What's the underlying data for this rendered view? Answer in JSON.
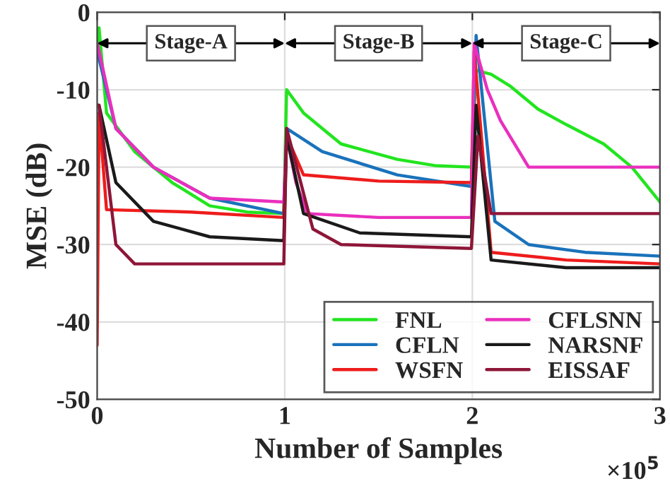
{
  "chart_data": {
    "type": "line",
    "xlabel": "Number of Samples",
    "ylabel": "MSE (dB)",
    "xlim": [
      0,
      3
    ],
    "xticks": [
      0,
      1,
      2,
      3
    ],
    "ylim": [
      -50,
      0
    ],
    "yticks": [
      -50,
      -40,
      -30,
      -20,
      -10,
      0
    ],
    "grid": true,
    "legend": "bottom right",
    "annotations": [
      "Stage-A",
      "Stage-B",
      "Stage-C",
      "×10$^{5}$"
    ],
    "series": [
      {
        "name": "FNL",
        "color": "#22e51f",
        "x": [
          0,
          0.01,
          0.05,
          0.2,
          0.4,
          0.6,
          0.8,
          0.995,
          1.01,
          1.1,
          1.3,
          1.6,
          1.8,
          1.995,
          2.02,
          2.1,
          2.2,
          2.35,
          2.5,
          2.7,
          2.85,
          3.0
        ],
        "values": [
          -5,
          -2,
          -13,
          -18,
          -22,
          -25,
          -25.8,
          -26,
          -10,
          -13,
          -17,
          -19,
          -19.8,
          -20,
          -7.5,
          -8,
          -9.5,
          -12.5,
          -14.5,
          -17,
          -20,
          -24.5
        ]
      },
      {
        "name": "CFLN",
        "color": "#1a72bb",
        "x": [
          0,
          0.01,
          0.1,
          0.3,
          0.6,
          0.995,
          1.01,
          1.2,
          1.6,
          1.995,
          2.02,
          2.07,
          2.12,
          2.3,
          2.6,
          3.0
        ],
        "values": [
          -5,
          -6,
          -15,
          -20,
          -24,
          -26,
          -15,
          -18,
          -21,
          -22.5,
          -3,
          -15,
          -27,
          -30,
          -31,
          -31.5
        ]
      },
      {
        "name": "WSFN",
        "color": "#ee1c1c",
        "x": [
          0,
          0.01,
          0.05,
          0.5,
          0.995,
          1.01,
          1.1,
          1.5,
          1.995,
          2.01,
          2.1,
          2.5,
          3.0
        ],
        "values": [
          -43,
          -13,
          -25.5,
          -25.8,
          -26.5,
          -16,
          -21,
          -21.8,
          -22,
          -5,
          -31,
          -32,
          -32.5
        ]
      },
      {
        "name": "CFLSNN",
        "color": "#ea2fbd",
        "x": [
          0,
          0.01,
          0.1,
          0.3,
          0.6,
          0.995,
          1.01,
          1.06,
          1.12,
          1.5,
          1.995,
          2.01,
          2.08,
          2.15,
          2.3,
          2.6,
          3.0
        ],
        "values": [
          -4,
          -5,
          -15,
          -20,
          -24,
          -24.5,
          -16,
          -22,
          -26,
          -26.5,
          -26.5,
          -4,
          -10,
          -14,
          -20,
          -20,
          -20
        ]
      },
      {
        "name": "NARSNF",
        "color": "#1a1a1a",
        "x": [
          0,
          0.01,
          0.1,
          0.3,
          0.6,
          0.995,
          1.01,
          1.1,
          1.4,
          1.995,
          2.02,
          2.1,
          2.5,
          3.0
        ],
        "values": [
          -12,
          -12,
          -22,
          -27,
          -29,
          -29.5,
          -16,
          -26,
          -28.5,
          -29,
          -12,
          -32,
          -33,
          -33
        ]
      },
      {
        "name": "EISSAF",
        "color": "#8e1638",
        "x": [
          0,
          0.01,
          0.1,
          0.2,
          0.6,
          0.995,
          1.01,
          1.15,
          1.3,
          1.995,
          2.03,
          2.1,
          2.5,
          3.0
        ],
        "values": [
          -12,
          -12,
          -30,
          -32.5,
          -32.5,
          -32.5,
          -15,
          -28,
          -30,
          -30.5,
          -16,
          -26,
          -26,
          -26
        ]
      }
    ]
  }
}
